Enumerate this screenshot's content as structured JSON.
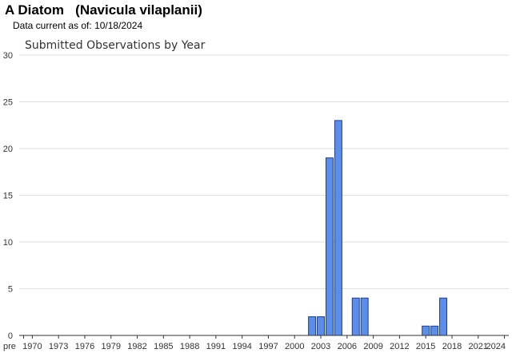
{
  "header": {
    "title": "A Diatom   (Navicula vilaplanii)",
    "data_current_label": "Data current as of:",
    "data_current_date": "10/18/2024"
  },
  "colors": {
    "bar_fill": "#5b8ee8",
    "bar_stroke": "#1f3c8f",
    "grid": "#dddddd",
    "axis": "#333333"
  },
  "chart_data": {
    "type": "bar",
    "title": "Submitted Observations by Year",
    "xlabel": "",
    "ylabel": "",
    "ylim": [
      0,
      30
    ],
    "yticks": [
      0,
      5,
      10,
      15,
      20,
      25,
      30
    ],
    "grid": true,
    "categories": [
      "pre",
      "1970",
      "1971",
      "1972",
      "1973",
      "1974",
      "1975",
      "1976",
      "1977",
      "1978",
      "1979",
      "1980",
      "1981",
      "1982",
      "1983",
      "1984",
      "1985",
      "1986",
      "1987",
      "1988",
      "1989",
      "1990",
      "1991",
      "1992",
      "1993",
      "1994",
      "1995",
      "1996",
      "1997",
      "1998",
      "1999",
      "2000",
      "2001",
      "2002",
      "2003",
      "2004",
      "2005",
      "2006",
      "2007",
      "2008",
      "2009",
      "2010",
      "2011",
      "2012",
      "2013",
      "2014",
      "2015",
      "2016",
      "2017",
      "2018",
      "2019",
      "2020",
      "2021",
      "2022",
      "2023",
      "2024"
    ],
    "xtick_labels": [
      "pre",
      "1970",
      "1973",
      "1976",
      "1979",
      "1982",
      "1985",
      "1988",
      "1991",
      "1994",
      "1997",
      "2000",
      "2003",
      "2006",
      "2009",
      "2012",
      "2015",
      "2018",
      "2021",
      "2024"
    ],
    "values": [
      0,
      0,
      0,
      0,
      0,
      0,
      0,
      0,
      0,
      0,
      0,
      0,
      0,
      0,
      0,
      0,
      0,
      0,
      0,
      0,
      0,
      0,
      0,
      0,
      0,
      0,
      0,
      0,
      0,
      0,
      0,
      0,
      0,
      2,
      2,
      19,
      23,
      0,
      4,
      4,
      0,
      0,
      0,
      0,
      0,
      0,
      1,
      1,
      4,
      0,
      0,
      0,
      0,
      0,
      0,
      0
    ]
  }
}
